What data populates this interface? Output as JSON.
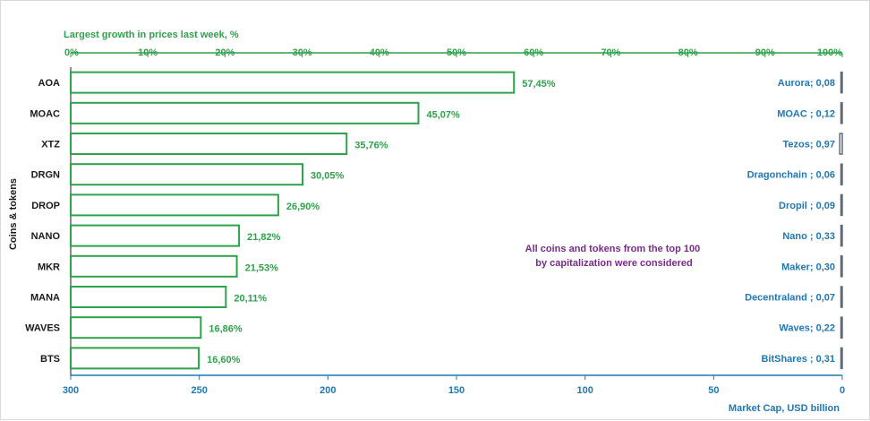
{
  "chart_data": {
    "type": "bar",
    "orientation": "horizontal",
    "title": "Largest growth in prices last week, %",
    "ylabel": "Coins & tokens",
    "xlabel_bottom": "Market Cap,  USD billion",
    "annotation": "All coins and tokens from the top 100 by capitalization were considered",
    "categories": [
      "AOA",
      "MOAC",
      "XTZ",
      "DRGN",
      "DROP",
      "NANO",
      "MKR",
      "MANA",
      "WAVES",
      "BTS"
    ],
    "series": [
      {
        "values": [
          57.45,
          45.07,
          35.76,
          30.05,
          26.9,
          21.82,
          21.53,
          20.11,
          16.86,
          16.6
        ],
        "labels": [
          "57,45%",
          "45,07%",
          "35,76%",
          "30,05%",
          "26,90%",
          "21,82%",
          "21,53%",
          "20,11%",
          "16,86%",
          "16,60%"
        ],
        "color": "#2ea24a"
      },
      {
        "values": [
          0.08,
          0.12,
          0.97,
          0.06,
          0.09,
          0.33,
          0.3,
          0.07,
          0.22,
          0.31
        ],
        "labels": [
          "Aurora;  0,08",
          "MOAC ; 0,12",
          "Tezos; 0,97",
          "Dragonchain ; 0,06",
          "Dropil ; 0,09",
          "Nano ; 0,33",
          "Maker; 0,30",
          "Decentraland ; 0,07",
          "Waves; 0,22",
          "BitShares ; 0,31"
        ],
        "color": "#1f78b4"
      }
    ],
    "top_axis": {
      "range": [
        0,
        100
      ],
      "ticks": [
        "0%",
        "10%",
        "20%",
        "30%",
        "40%",
        "50%",
        "60%",
        "70%",
        "80%",
        "90%",
        "100%"
      ]
    },
    "bottom_axis": {
      "range": [
        300,
        0
      ],
      "ticks": [
        "300",
        "250",
        "200",
        "150",
        "100",
        "50",
        "0"
      ]
    },
    "grid": false,
    "colors": {
      "growth": "#2ea24a",
      "market_cap": "#1f78b4",
      "annotation": "#7a2a8c",
      "axis": "#2ea24a"
    }
  }
}
